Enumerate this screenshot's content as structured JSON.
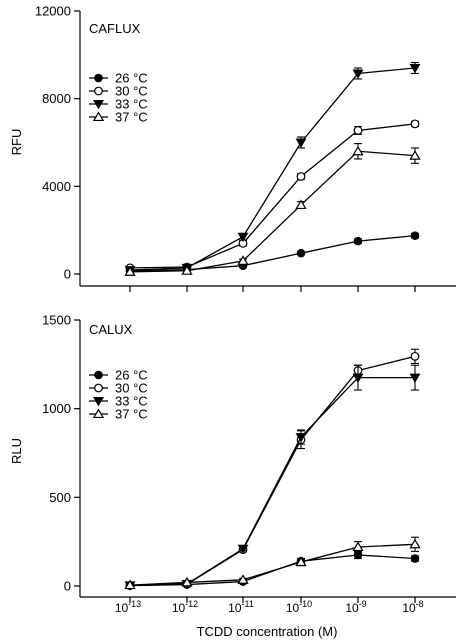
{
  "figure": {
    "xlabel": "TCDD concentration (M)"
  },
  "chart_data": [
    {
      "type": "line",
      "title": "CAFLUX",
      "xlabel": "TCDD concentration (M)",
      "ylabel": "RFU",
      "xscale": "log",
      "x": [
        1e-13,
        1e-12,
        1e-11,
        1e-10,
        1e-09,
        1e-08
      ],
      "x_tick_labels": [
        {
          "base": "10",
          "exp": "-13"
        },
        {
          "base": "10",
          "exp": "-12"
        },
        {
          "base": "10",
          "exp": "-11"
        },
        {
          "base": "10",
          "exp": "-10"
        },
        {
          "base": "10",
          "exp": "-9"
        },
        {
          "base": "10",
          "exp": "-8"
        }
      ],
      "ylim": [
        0,
        12000
      ],
      "yticks": [
        0,
        4000,
        8000,
        12000
      ],
      "ytick_labels": [
        "0",
        "4000",
        "8000",
        "12000"
      ],
      "legend_position": "upper-left",
      "series": [
        {
          "name": "26 °C",
          "marker": "filled-circle",
          "values": [
            150,
            200,
            380,
            950,
            1500,
            1750
          ],
          "err": [
            30,
            30,
            40,
            60,
            100,
            100
          ]
        },
        {
          "name": "30 °C",
          "marker": "open-circle",
          "values": [
            280,
            320,
            1400,
            4450,
            6550,
            6850
          ],
          "err": [
            40,
            40,
            120,
            120,
            180,
            120
          ]
        },
        {
          "name": "33 °C",
          "marker": "filled-triangle-down",
          "values": [
            180,
            280,
            1700,
            6000,
            9150,
            9400
          ],
          "err": [
            30,
            40,
            150,
            250,
            250,
            250
          ]
        },
        {
          "name": "37 °C",
          "marker": "open-triangle-up",
          "values": [
            100,
            150,
            600,
            3150,
            5600,
            5400
          ],
          "err": [
            30,
            30,
            80,
            150,
            350,
            350
          ]
        }
      ]
    },
    {
      "type": "line",
      "title": "CALUX",
      "xlabel": "TCDD concentration (M)",
      "ylabel": "RLU",
      "xscale": "log",
      "x": [
        1e-13,
        1e-12,
        1e-11,
        1e-10,
        1e-09,
        1e-08
      ],
      "x_tick_labels": [
        {
          "base": "10",
          "exp": "-13"
        },
        {
          "base": "10",
          "exp": "-12"
        },
        {
          "base": "10",
          "exp": "-11"
        },
        {
          "base": "10",
          "exp": "-10"
        },
        {
          "base": "10",
          "exp": "-9"
        },
        {
          "base": "10",
          "exp": "-8"
        }
      ],
      "ylim": [
        0,
        1500
      ],
      "yticks": [
        0,
        500,
        1000,
        1500
      ],
      "ytick_labels": [
        "0",
        "500",
        "1000",
        "1500"
      ],
      "legend_position": "upper-left",
      "series": [
        {
          "name": "26 °C",
          "marker": "filled-circle",
          "values": [
            2,
            8,
            25,
            140,
            175,
            155
          ],
          "err": [
            2,
            3,
            6,
            15,
            20,
            15
          ]
        },
        {
          "name": "30 °C",
          "marker": "open-circle",
          "values": [
            3,
            10,
            205,
            825,
            1215,
            1295
          ],
          "err": [
            2,
            3,
            12,
            50,
            30,
            40
          ]
        },
        {
          "name": "33 °C",
          "marker": "filled-triangle-down",
          "values": [
            4,
            12,
            210,
            840,
            1175,
            1175
          ],
          "err": [
            2,
            4,
            12,
            40,
            70,
            70
          ]
        },
        {
          "name": "37 °C",
          "marker": "open-triangle-up",
          "values": [
            5,
            20,
            35,
            135,
            220,
            235
          ],
          "err": [
            2,
            5,
            8,
            20,
            30,
            40
          ]
        }
      ]
    }
  ]
}
